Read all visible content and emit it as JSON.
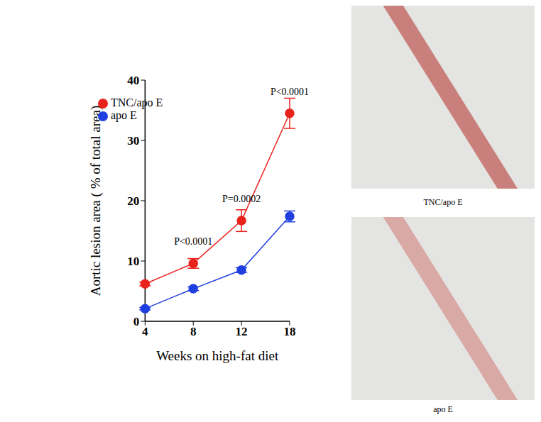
{
  "chart_data": {
    "type": "line",
    "x_label": "Weeks on high-fat diet",
    "y_label": "Aortic lesion area ( % of total area)",
    "categories": [
      "4",
      "8",
      "12",
      "18"
    ],
    "series": [
      {
        "name": "TNC/apo E",
        "color": "#e8231c",
        "marker": "circle",
        "values": [
          6.2,
          9.6,
          16.7,
          34.5
        ],
        "errors": [
          0.3,
          0.8,
          1.8,
          2.5
        ]
      },
      {
        "name": "apo E",
        "color": "#1f3fe0",
        "marker": "circle",
        "values": [
          2.1,
          5.4,
          8.5,
          17.4
        ],
        "errors": [
          0.2,
          0.3,
          0.4,
          0.9
        ]
      }
    ],
    "ylim": [
      0,
      40
    ],
    "yticks": [
      0,
      10,
      20,
      30,
      40
    ],
    "grid": false,
    "legend": "upper left",
    "annotations": [
      {
        "x": "8",
        "text": "P<0.0001"
      },
      {
        "x": "12",
        "text": "P=0.0002"
      },
      {
        "x": "18",
        "text": "P<0.0001"
      }
    ]
  },
  "images": [
    {
      "caption": "TNC/apo E"
    },
    {
      "caption": "apo E"
    }
  ]
}
